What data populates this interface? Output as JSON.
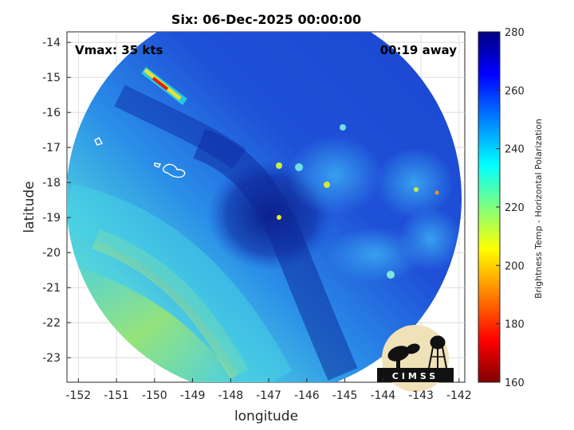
{
  "title": "Six: 06-Dec-2025 00:00:00",
  "corner_left": "Vmax: 35 kts",
  "corner_right": "00:19 away",
  "xlabel": "longitude",
  "ylabel": "latitude",
  "x_ticks": [
    "-152",
    "-151",
    "-150",
    "-149",
    "-148",
    "-147",
    "-146",
    "-145",
    "-144",
    "-143",
    "-142"
  ],
  "y_ticks": [
    "-14",
    "-15",
    "-16",
    "-17",
    "-18",
    "-19",
    "-20",
    "-21",
    "-22",
    "-23"
  ],
  "x_range": [
    -152.3,
    -141.85
  ],
  "y_range": [
    -23.7,
    -13.7
  ],
  "colorbar": {
    "label": "Brightness Temp - Horizontal Polarization",
    "ticks": [
      "280",
      "260",
      "240",
      "220",
      "200",
      "180",
      "160"
    ],
    "range": [
      160,
      280
    ],
    "colors": [
      "#800000",
      "#ff0000",
      "#ff8000",
      "#ffff00",
      "#80ff80",
      "#00ffff",
      "#0080ff",
      "#0000ff",
      "#000080"
    ]
  },
  "logo": {
    "text": "CIMSS"
  },
  "colors": {
    "deep_blue": "#0a1f8f",
    "mid_blue": "#1f56e0",
    "light_blue": "#2ca0f0",
    "cyan": "#3ed6e0",
    "green_yellow": "#9fe870"
  }
}
